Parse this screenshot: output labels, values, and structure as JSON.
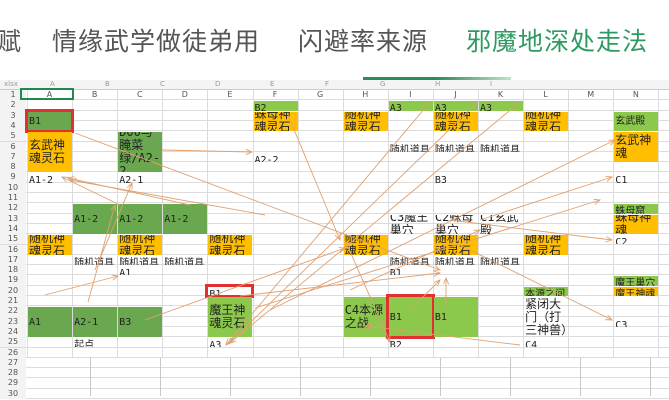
{
  "tabs": [
    {
      "label": "赋",
      "active": false
    },
    {
      "label": "情缘武学做徒弟用",
      "active": false
    },
    {
      "label": "闪避率来源",
      "active": false
    },
    {
      "label": "邪魔地深处走法",
      "active": true
    }
  ],
  "sheet": {
    "file_label": "xlsx",
    "outer_columns": [
      "A",
      "B",
      "C",
      "D",
      "E",
      "F",
      "G",
      "H",
      "I"
    ],
    "columns": [
      "A",
      "B",
      "C",
      "D",
      "E",
      "F",
      "G",
      "H",
      "I",
      "J",
      "K",
      "L",
      "M",
      "N"
    ],
    "rows": [
      "1",
      "2",
      "3",
      "4",
      "5",
      "6",
      "7",
      "8",
      "9",
      "10",
      "11",
      "12",
      "13",
      "14",
      "15",
      "16",
      "17",
      "18",
      "19",
      "20",
      "21",
      "22",
      "23",
      "24",
      "25",
      "26",
      "27",
      "28",
      "29",
      "30"
    ],
    "colors": {
      "dark_green": "#6aa84f",
      "light_green": "#8cc84b",
      "orange": "#ffbf00",
      "arrow": "#e0a070",
      "highlight": "#e03030"
    },
    "cells": [
      {
        "range": "F2",
        "text": "B2",
        "fill": "light_green"
      },
      {
        "range": "A3:A4",
        "text": "B1",
        "fill": "dark_green",
        "highlight": true
      },
      {
        "range": "F3:F4",
        "text": "蛛母神魂灵石",
        "fill": "orange"
      },
      {
        "range": "H3:H4",
        "text": "随机神魂灵石",
        "fill": "orange"
      },
      {
        "range": "I2",
        "text": "A3",
        "fill": "light_green"
      },
      {
        "range": "J2",
        "text": "A3",
        "fill": "light_green"
      },
      {
        "range": "K2",
        "text": "A3",
        "fill": "light_green"
      },
      {
        "range": "J3:J4",
        "text": "随机神魂灵石",
        "fill": "orange"
      },
      {
        "range": "L3:L4",
        "text": "随机神魂灵石",
        "fill": "orange"
      },
      {
        "range": "N3:N4",
        "text": "玄武殿",
        "fill": "light_green"
      },
      {
        "range": "N5:N7",
        "text": "玄武神魂",
        "fill": "orange"
      },
      {
        "range": "A5:A8",
        "text": "玄武神魂灵石",
        "fill": "orange"
      },
      {
        "range": "C5:C8",
        "text": "D00与腌菜绿/A2-2",
        "fill": "dark_green"
      },
      {
        "range": "F7",
        "text": "A2-2"
      },
      {
        "range": "I6",
        "text": "随机道具"
      },
      {
        "range": "J6",
        "text": "随机道具"
      },
      {
        "range": "K6",
        "text": "随机道具"
      },
      {
        "range": "A9",
        "text": "A1-2"
      },
      {
        "range": "C9",
        "text": "A2-1"
      },
      {
        "range": "J9",
        "text": "B3"
      },
      {
        "range": "N9",
        "text": "C1"
      },
      {
        "range": "B12:B14",
        "text": "A1-2",
        "fill": "dark_green"
      },
      {
        "range": "C12:C14",
        "text": "A1-2",
        "fill": "dark_green"
      },
      {
        "range": "D12:D14",
        "text": "A1-2",
        "fill": "dark_green"
      },
      {
        "range": "I13:I14",
        "text": "C3魔王巢穴"
      },
      {
        "range": "J13:J14",
        "text": "C2蛛母巢穴"
      },
      {
        "range": "K13:K14",
        "text": "C1玄武殿"
      },
      {
        "range": "N12",
        "text": "蛛母窟",
        "fill": "light_green"
      },
      {
        "range": "N13:N14",
        "text": "蛛母神魂",
        "fill": "orange"
      },
      {
        "range": "A15:A16",
        "text": "随机神魂灵石",
        "fill": "orange"
      },
      {
        "range": "C15:C16",
        "text": "随机神魂灵石",
        "fill": "orange"
      },
      {
        "range": "E15:E16",
        "text": "随机神魂灵石",
        "fill": "orange"
      },
      {
        "range": "H15:H16",
        "text": "随机神魂灵石",
        "fill": "orange"
      },
      {
        "range": "J15:J16",
        "text": "随机神魂灵石",
        "fill": "orange"
      },
      {
        "range": "L15:L16",
        "text": "随机神魂灵石",
        "fill": "orange"
      },
      {
        "range": "N15",
        "text": "C2"
      },
      {
        "range": "B17",
        "text": "随机道具"
      },
      {
        "range": "C17",
        "text": "随机道具"
      },
      {
        "range": "D17",
        "text": "随机道具"
      },
      {
        "range": "I17",
        "text": "随机道具"
      },
      {
        "range": "J17",
        "text": "随机道具"
      },
      {
        "range": "K17",
        "text": "随机道具"
      },
      {
        "range": "C18",
        "text": "A1"
      },
      {
        "range": "I18",
        "text": "B1"
      },
      {
        "range": "N19",
        "text": "魔王巢穴",
        "fill": "light_green"
      },
      {
        "range": "N20",
        "text": "魔王神魂",
        "fill": "orange"
      },
      {
        "range": "L20",
        "text": "本源之间",
        "fill": "light_green"
      },
      {
        "range": "E20",
        "text": "B1",
        "highlight": true
      },
      {
        "range": "A22:A24",
        "text": "A1",
        "fill": "dark_green"
      },
      {
        "range": "B22:B24",
        "text": "A2-1",
        "fill": "dark_green"
      },
      {
        "range": "C22:C24",
        "text": "B3",
        "fill": "dark_green"
      },
      {
        "range": "E21:E24",
        "text": "魔王神魂灵石",
        "fill": "light_green"
      },
      {
        "range": "H21:H24",
        "text": "C4本源之战",
        "fill": "light_green"
      },
      {
        "range": "I21:I24",
        "text": "B1",
        "fill": "light_green",
        "highlight": true
      },
      {
        "range": "J21:J24",
        "text": "B1",
        "fill": "light_green"
      },
      {
        "range": "L21:L24",
        "text": "紧闭大门（打三神兽）"
      },
      {
        "range": "N23",
        "text": "C3"
      },
      {
        "range": "B25",
        "text": "起点"
      },
      {
        "range": "E25",
        "text": "A3"
      },
      {
        "range": "I25",
        "text": "B2"
      },
      {
        "range": "L25",
        "text": "C4"
      }
    ]
  }
}
